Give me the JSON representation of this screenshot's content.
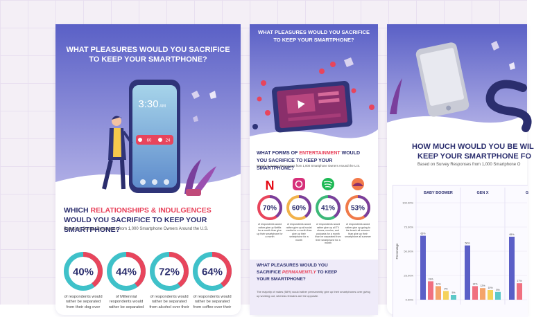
{
  "card1": {
    "title_lines": [
      "WHAT PLEASURES WOULD YOU SACRIFICE",
      "TO KEEP YOUR SMARTPHONE?"
    ],
    "phone_time": "3:30",
    "phone_ampm": "AM",
    "notification_counts": [
      "60",
      "24"
    ],
    "heading": {
      "before": "WHICH ",
      "highlight": "RELATIONSHIPS & INDULGENCES",
      "after": " WOULD YOU SACRIFICE TO KEEP YOUR SMARTPHONE?"
    },
    "subtitle": "Based on Survey Responses from 1,000 Smartphone Owners Around the U.S.",
    "stats": [
      {
        "value": "40%",
        "caption": "of respondents would rather be separated from their dog over"
      },
      {
        "value": "44%",
        "caption": "of Millennial respondents would rather be separated"
      },
      {
        "value": "72%",
        "caption": "of respondents would rather be separated from alcohol over their"
      },
      {
        "value": "64%",
        "caption": "of respondents would rather be separated from coffee over their"
      }
    ]
  },
  "card2": {
    "title_lines": [
      "WHAT PLEASURES WOULD YOU SACRIFICE",
      "TO KEEP YOUR SMARTPHONE?"
    ],
    "heading": {
      "before": "WHAT FORMS OF ",
      "highlight": "ENTERTAINMENT",
      "after": " WOULD YOU SACRIFICE TO KEEP YOUR SMARTPHONE?"
    },
    "subtitle": "Based on Survey Responses from 1,000 Smartphone Owners Around the U.S.",
    "stats": [
      {
        "value": "70%",
        "caption": "of respondents would rather give up Netflix for a month than give up their smartphone for a month"
      },
      {
        "value": "60%",
        "caption": "of respondents would rather give up all social media for a month than give up their smartphone for a month"
      },
      {
        "value": "41%",
        "caption": "of respondents would rather give up all TV shows, movies, and podcasts for a month than be separated from their smartphone for a month"
      },
      {
        "value": "53%",
        "caption": "of respondents would rather give up going to the beach all summer than give up their smartphone all summer"
      }
    ],
    "section2": {
      "heading": {
        "before": "WHAT PLEASURES WOULD YOU SACRIFICE ",
        "highlight": "PERMANENTLY",
        "after": " TO KEEP YOUR SMARTPHONE?"
      },
      "text": "The majority of males (58%) would rather permanently give up their smartphones over giving up working out, whereas females are the opposite."
    }
  },
  "card3": {
    "title_lines": [
      "HOW MUCH WOULD YOU BE WIL",
      "KEEP YOUR SMARTPHONE FO"
    ],
    "subtitle": "Based on Survey Responses from 1,000 Smartphone O",
    "chart": {
      "type": "bar",
      "categories": [
        "BABY BOOMER",
        "GEN X",
        "G"
      ],
      "ylabel": "Percentage",
      "ylim": [
        0,
        100
      ],
      "yticks": [
        {
          "value": 0,
          "label": "0.00%"
        },
        {
          "value": 25,
          "label": "25.00%"
        },
        {
          "value": 50,
          "label": "50.00%"
        },
        {
          "value": 75,
          "label": "75.00%"
        },
        {
          "value": 100,
          "label": "100.00%"
        }
      ],
      "grid": true,
      "series": [
        {
          "color": "#5b5fc7",
          "values": [
            66,
            56,
            65
          ],
          "value_labels": [
            "66%",
            "56%",
            "65%"
          ]
        },
        {
          "color": "#f07080",
          "values": [
            19,
            14,
            17
          ],
          "value_labels": [
            "19%",
            "14%",
            "17%"
          ]
        },
        {
          "color": "#f4a46a",
          "values": [
            14,
            12,
            null
          ],
          "value_labels": [
            "14%",
            "12%",
            null
          ]
        },
        {
          "color": "#f5d25a",
          "values": [
            9,
            10,
            null
          ],
          "value_labels": [
            "9%",
            "10%",
            null
          ]
        },
        {
          "color": "#5cc8c8",
          "values": [
            5,
            8,
            null
          ],
          "value_labels": [
            "5%",
            "8%",
            null
          ]
        }
      ]
    }
  }
}
